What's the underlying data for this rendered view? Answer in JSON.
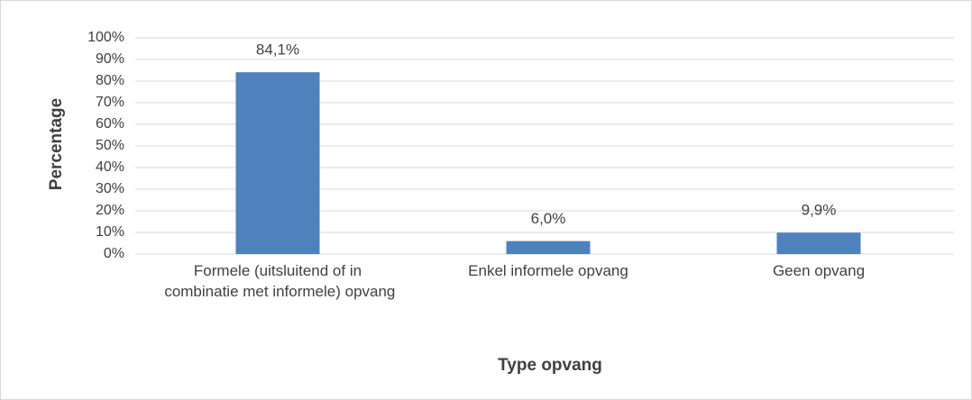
{
  "chart_data": {
    "type": "bar",
    "categories": [
      "Formele (uitsluitend of in combinatie met informele) opvang",
      "Enkel informele opvang",
      "Geen opvang"
    ],
    "values": [
      84.1,
      6.0,
      9.9
    ],
    "value_labels": [
      "84,1%",
      "6,0%",
      "9,9%"
    ],
    "color": "#4f81bd",
    "ylim": [
      0,
      100
    ],
    "yticks": [
      {
        "value": 0,
        "label": "0%"
      },
      {
        "value": 10,
        "label": "10%"
      },
      {
        "value": 20,
        "label": "20%"
      },
      {
        "value": 30,
        "label": "30%"
      },
      {
        "value": 40,
        "label": "40%"
      },
      {
        "value": 50,
        "label": "50%"
      },
      {
        "value": 60,
        "label": "60%"
      },
      {
        "value": 70,
        "label": "70%"
      },
      {
        "value": 80,
        "label": "80%"
      },
      {
        "value": 90,
        "label": "90%"
      },
      {
        "value": 100,
        "label": "100%"
      }
    ],
    "grid": true,
    "x_label": "Type opvang",
    "y_label": "Percentage"
  }
}
